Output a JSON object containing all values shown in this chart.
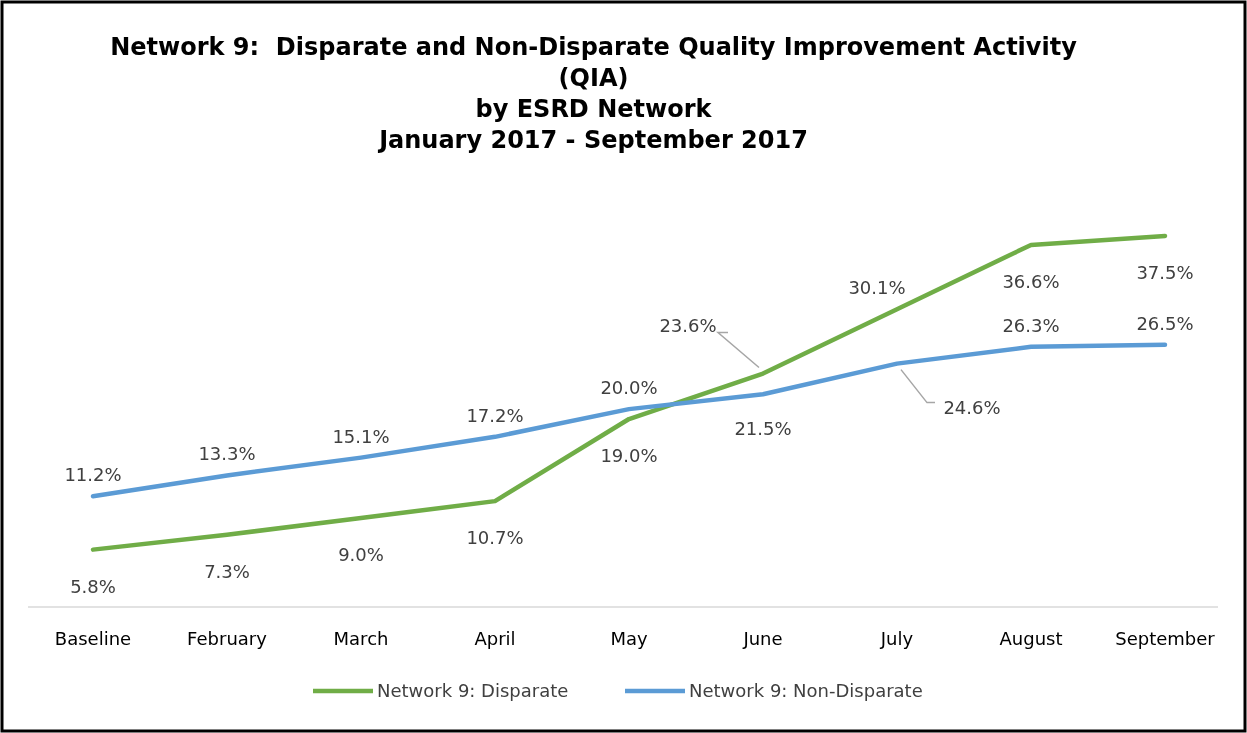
{
  "chart_data": {
    "type": "line",
    "title": "Network 9:  Disparate and Non-Disparate Quality Improvement Activity\n(QIA)\nby ESRD Network",
    "subtitle": "January 2017 - September 2017",
    "categories": [
      "Baseline",
      "February",
      "March",
      "April",
      "May",
      "June",
      "July",
      "August",
      "September"
    ],
    "series": [
      {
        "name": "Network 9: Disparate",
        "color": "#70ad47",
        "values": [
          5.8,
          7.3,
          9.0,
          10.7,
          19.0,
          23.6,
          30.1,
          36.6,
          37.5
        ],
        "value_labels": [
          "5.8%",
          "7.3%",
          "9.0%",
          "10.7%",
          "19.0%",
          "23.6%",
          "30.1%",
          "36.6%",
          "37.5%"
        ]
      },
      {
        "name": "Network 9: Non-Disparate",
        "color": "#5b9bd5",
        "values": [
          11.2,
          13.3,
          15.1,
          17.2,
          20.0,
          21.5,
          24.6,
          26.3,
          26.5
        ],
        "value_labels": [
          "11.2%",
          "13.3%",
          "15.1%",
          "17.2%",
          "20.0%",
          "21.5%",
          "24.6%",
          "26.3%",
          "26.5%"
        ]
      }
    ],
    "tick_labels": "x",
    "legend": "bottom",
    "marker": "none",
    "line_style": "solid"
  }
}
